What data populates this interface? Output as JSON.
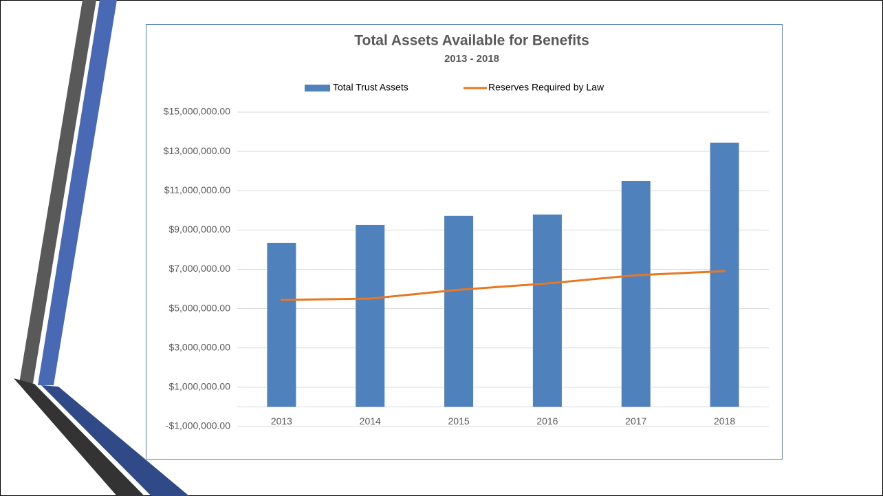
{
  "chart_data": {
    "type": "bar_line",
    "title": "Total Assets Available for Benefits",
    "subtitle": "2013 - 2018",
    "categories": [
      "2013",
      "2014",
      "2015",
      "2016",
      "2017",
      "2018"
    ],
    "series": [
      {
        "name": "Total Trust Assets",
        "type": "bar",
        "color": "#4f81bd",
        "values": [
          8350000,
          9260000,
          9720000,
          9790000,
          11500000,
          13440000
        ]
      },
      {
        "name": "Reserves Required by Law",
        "type": "line",
        "color": "#e87722",
        "values": [
          5440000,
          5510000,
          5960000,
          6280000,
          6700000,
          6910000
        ]
      }
    ],
    "ylim": [
      -1000000,
      15000000
    ],
    "yticks": [
      {
        "value": -1000000,
        "label": "-$1,000,000.00"
      },
      {
        "value": 1000000,
        "label": "$1,000,000.00"
      },
      {
        "value": 3000000,
        "label": "$3,000,000.00"
      },
      {
        "value": 5000000,
        "label": "$5,000,000.00"
      },
      {
        "value": 7000000,
        "label": "$7,000,000.00"
      },
      {
        "value": 9000000,
        "label": "$9,000,000.00"
      },
      {
        "value": 11000000,
        "label": "$11,000,000.00"
      },
      {
        "value": 13000000,
        "label": "$13,000,000.00"
      },
      {
        "value": 15000000,
        "label": "$15,000,000.00"
      }
    ],
    "grid": true,
    "legend": "top"
  }
}
